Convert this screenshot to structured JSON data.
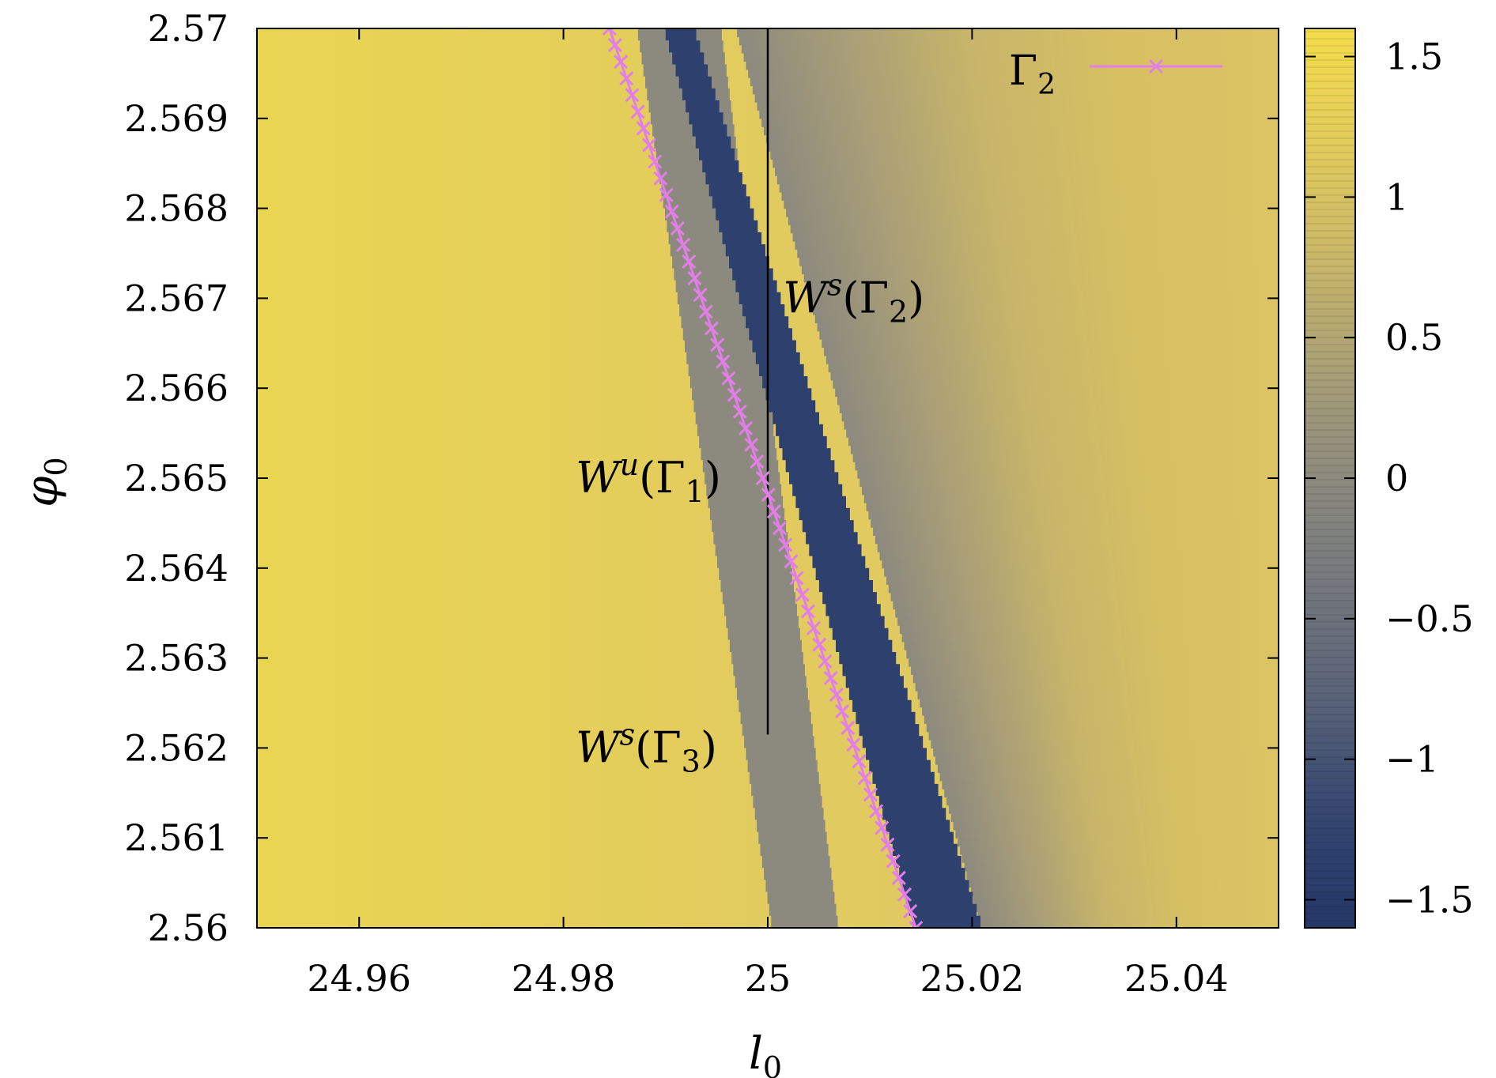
{
  "chart_data": {
    "type": "heatmap",
    "xlabel": "l",
    "xlabel_sub": "0",
    "ylabel": "φ",
    "ylabel_sub": "0",
    "xlim": [
      24.95,
      25.05
    ],
    "ylim": [
      2.56,
      2.57
    ],
    "x_ticks": [
      {
        "value": 24.96,
        "label": "24.96"
      },
      {
        "value": 24.98,
        "label": "24.98"
      },
      {
        "value": 25.0,
        "label": "25"
      },
      {
        "value": 25.02,
        "label": "25.02"
      },
      {
        "value": 25.04,
        "label": "25.04"
      }
    ],
    "y_ticks": [
      {
        "value": 2.56,
        "label": "2.56"
      },
      {
        "value": 2.561,
        "label": "2.561"
      },
      {
        "value": 2.562,
        "label": "2.562"
      },
      {
        "value": 2.563,
        "label": "2.563"
      },
      {
        "value": 2.564,
        "label": "2.564"
      },
      {
        "value": 2.565,
        "label": "2.565"
      },
      {
        "value": 2.566,
        "label": "2.566"
      },
      {
        "value": 2.567,
        "label": "2.567"
      },
      {
        "value": 2.568,
        "label": "2.568"
      },
      {
        "value": 2.569,
        "label": "2.569"
      },
      {
        "value": 2.57,
        "label": "2.57"
      }
    ],
    "colorbar": {
      "range": [
        -1.6,
        1.6
      ],
      "ticks": [
        {
          "value": 1.5,
          "label": "1.5"
        },
        {
          "value": 1.0,
          "label": "1"
        },
        {
          "value": 0.5,
          "label": "0.5"
        },
        {
          "value": 0.0,
          "label": "0"
        },
        {
          "value": -0.5,
          "label": "−0.5"
        },
        {
          "value": -1.0,
          "label": "−1"
        },
        {
          "value": -1.5,
          "label": "−1.5"
        }
      ],
      "colors": {
        "low": "#2b3d6b",
        "mid": "#8a8a84",
        "high": "#f2dc4a"
      }
    },
    "regions": {
      "wu_gamma1_band": {
        "top": [
          24.9873,
          24.9955
        ],
        "bottom": [
          25.0005,
          25.007
        ],
        "value": 0.0
      },
      "dark_band": {
        "top": [
          24.99,
          24.993
        ],
        "bottom": [
          25.0145,
          25.0212
        ],
        "value": -1.35
      },
      "right_gradient_center": {
        "top": 24.9975,
        "bottom": 25.0215
      },
      "background_value": 1.15
    },
    "vertical_line": {
      "x": 25.0,
      "y_range": [
        2.56215,
        2.57
      ]
    },
    "series": [
      {
        "name": "Γ",
        "name_sub": "2",
        "color": "#e37ee8",
        "marker": "x",
        "points": [
          {
            "x": 24.9845,
            "y": 2.57
          },
          {
            "x": 25.0145,
            "y": 2.56
          }
        ],
        "n_markers": 54
      }
    ],
    "annotations": [
      {
        "main": "W",
        "sup": "s",
        "open": "(Γ",
        "sub": "2",
        "close": ")",
        "x": 25.0015,
        "y": 2.567
      },
      {
        "main": "W",
        "sup": "u",
        "open": "(Γ",
        "sub": "1",
        "close": ")",
        "x": 24.9812,
        "y": 2.565
      },
      {
        "main": "W",
        "sup": "s",
        "open": "(Γ",
        "sub": "3",
        "close": ")",
        "x": 24.9812,
        "y": 2.562
      }
    ],
    "legend_placement": "top-right"
  }
}
